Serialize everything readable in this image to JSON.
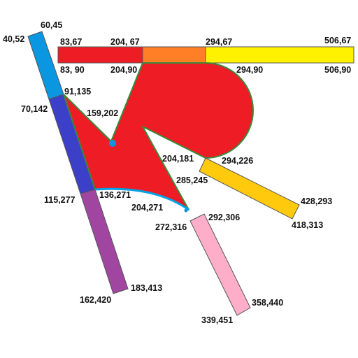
{
  "colors": {
    "blue_top": "#0a96e0",
    "indigo": "#3c3fc8",
    "purple": "#a046a0",
    "red": "#ee1c24",
    "orange": "#ff7f27",
    "yellow": "#fff200",
    "gold": "#ffc90e",
    "pink": "#ffaec9",
    "arc_blue": "#00a2e8",
    "outline_green": "#3a8a3a"
  },
  "labels": {
    "l_60_45": "60,45",
    "l_40_52": "40,52",
    "l_83_67": "83,67",
    "l_204_67": "204, 67",
    "l_294_67": "294,67",
    "l_506_67": "506,67",
    "l_83_90": "83, 90",
    "l_204_90": "204,90",
    "l_294_90": "294,90",
    "l_506_90": "506,90",
    "l_91_135": "91,135",
    "l_70_142": "70,142",
    "l_159_202": "159,202",
    "l_204_181": "204,181",
    "l_294_226": "294,226",
    "l_285_245": "285,245",
    "l_136_271": "136,271",
    "l_115_277": "115,277",
    "l_204_271": "204,271",
    "l_428_293": "428,293",
    "l_292_306": "292,306",
    "l_272_316": "272,316",
    "l_418_313": "418,313",
    "l_183_413": "183,413",
    "l_162_420": "162,420",
    "l_358_440": "358,440",
    "l_339_451": "339,451"
  }
}
